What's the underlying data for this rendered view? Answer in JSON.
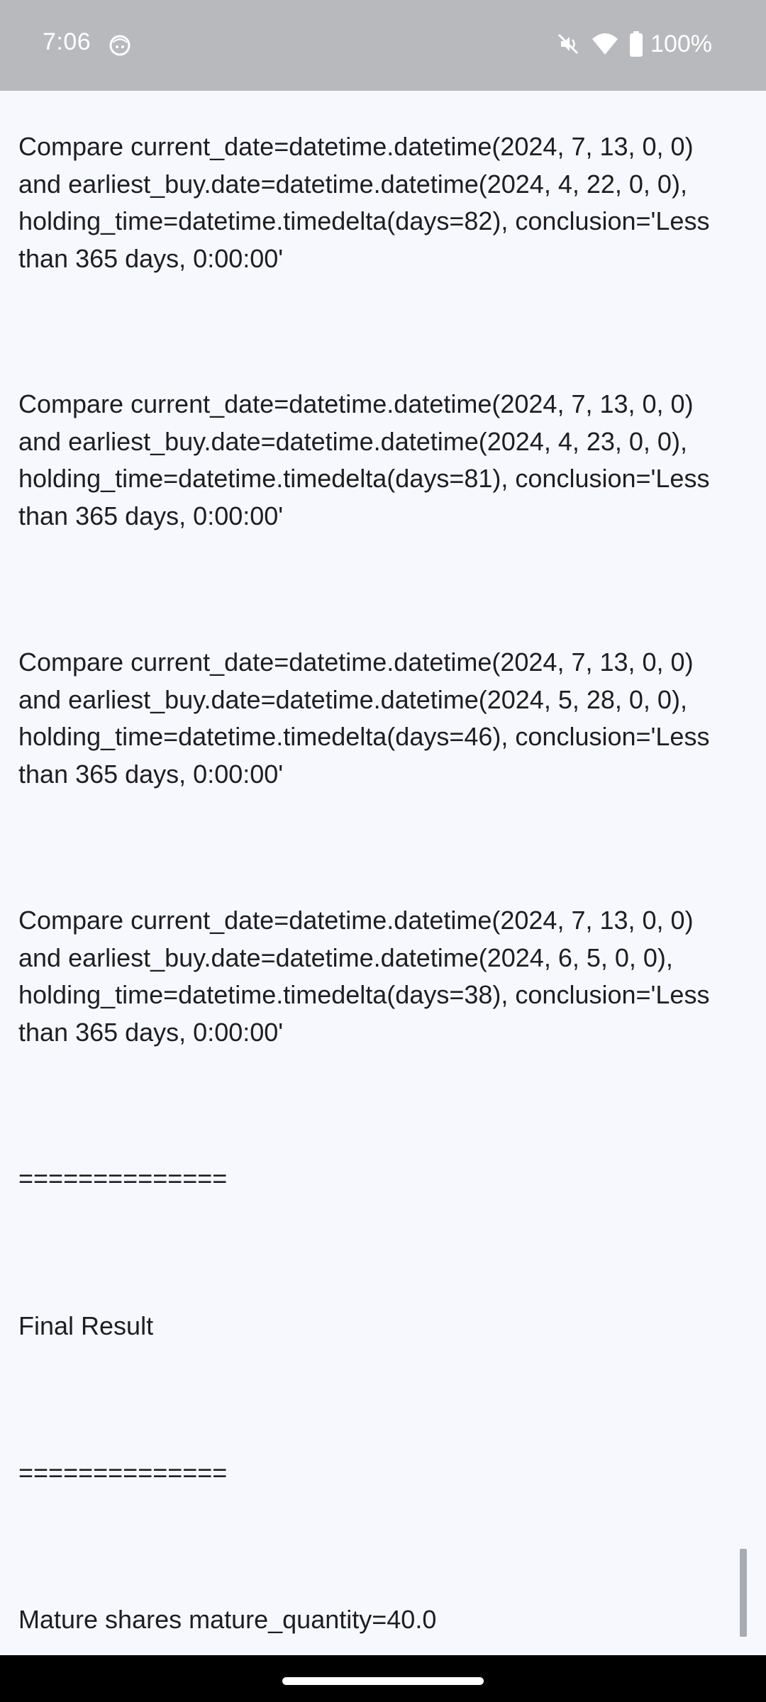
{
  "status_bar": {
    "time": "7:06",
    "battery": "100%"
  },
  "log": {
    "compare_1": "Compare current_date=datetime.datetime(2024, 7, 13, 0, 0) and earliest_buy.date=datetime.datetime(2024, 4, 22, 0, 0), holding_time=datetime.timedelta(days=82), conclusion='Less than 365 days, 0:00:00'",
    "compare_2": "Compare current_date=datetime.datetime(2024, 7, 13, 0, 0) and earliest_buy.date=datetime.datetime(2024, 4, 23, 0, 0), holding_time=datetime.timedelta(days=81), conclusion='Less than 365 days, 0:00:00'",
    "compare_3": "Compare current_date=datetime.datetime(2024, 7, 13, 0, 0) and earliest_buy.date=datetime.datetime(2024, 5, 28, 0, 0), holding_time=datetime.timedelta(days=46), conclusion='Less than 365 days, 0:00:00'",
    "compare_4": "Compare current_date=datetime.datetime(2024, 7, 13, 0, 0) and earliest_buy.date=datetime.datetime(2024, 6, 5, 0, 0), holding_time=datetime.timedelta(days=38), conclusion='Less than 365 days, 0:00:00'",
    "separator_1": "==============",
    "final_result": "Final Result",
    "separator_2": "==============",
    "mature_shares": "Mature shares mature_quantity=40.0"
  },
  "icons": {
    "status": [
      "face-icon",
      "mute-icon",
      "wifi-icon",
      "battery-icon"
    ]
  },
  "colors": {
    "status_bar_bg": "#b8b9bd",
    "content_bg": "#f7f8fd",
    "text": "#1e1e22",
    "nav_bar_bg": "#000000"
  }
}
